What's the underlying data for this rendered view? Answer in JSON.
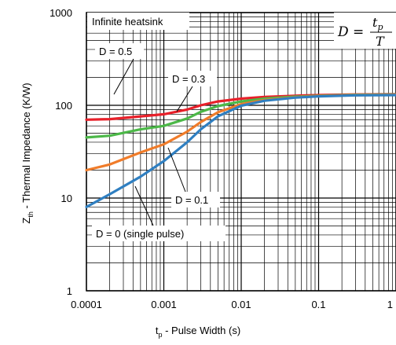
{
  "chart_data": {
    "type": "line",
    "xlabel": "t",
    "xlabel_sub": "p",
    "xlabel_rest": " - Pulse Width (s)",
    "ylabel": "Z",
    "ylabel_sub": "th",
    "ylabel_rest": " - Thermal Impedance (K/W)",
    "xscale": "log",
    "yscale": "log",
    "xlim": [
      0.0001,
      1
    ],
    "ylim": [
      1,
      1000
    ],
    "grid": true,
    "x_ticks": [
      "0.0001",
      "0.001",
      "0.01",
      "0.1",
      "1"
    ],
    "y_ticks": [
      "1",
      "10",
      "100",
      "1000"
    ],
    "annotations": {
      "infinite": "Infinite heatsink",
      "formula_lhs": "D =",
      "formula_num": "t",
      "formula_num_sub": "p",
      "formula_den": "T"
    },
    "series": [
      {
        "name": "D = 0.5",
        "color": "#e8202a",
        "points": [
          [
            0.0001,
            70
          ],
          [
            0.0002,
            71
          ],
          [
            0.0005,
            76
          ],
          [
            0.001,
            80
          ],
          [
            0.002,
            90
          ],
          [
            0.003,
            100
          ],
          [
            0.005,
            110
          ],
          [
            0.01,
            118
          ],
          [
            0.02,
            123
          ],
          [
            0.05,
            127
          ],
          [
            0.1,
            129
          ],
          [
            0.3,
            131
          ],
          [
            1,
            132
          ]
        ]
      },
      {
        "name": "D = 0.3",
        "color": "#4cb848",
        "points": [
          [
            0.0001,
            45
          ],
          [
            0.0002,
            47
          ],
          [
            0.0005,
            55
          ],
          [
            0.001,
            60
          ],
          [
            0.002,
            72
          ],
          [
            0.003,
            85
          ],
          [
            0.005,
            98
          ],
          [
            0.01,
            110
          ],
          [
            0.02,
            118
          ],
          [
            0.05,
            124
          ],
          [
            0.1,
            127
          ],
          [
            0.3,
            130
          ],
          [
            1,
            131
          ]
        ]
      },
      {
        "name": "D = 0.1",
        "color": "#f07c2a",
        "points": [
          [
            0.0001,
            20
          ],
          [
            0.0002,
            23
          ],
          [
            0.0005,
            31
          ],
          [
            0.001,
            38
          ],
          [
            0.002,
            52
          ],
          [
            0.003,
            66
          ],
          [
            0.005,
            84
          ],
          [
            0.01,
            103
          ],
          [
            0.02,
            114
          ],
          [
            0.05,
            122
          ],
          [
            0.1,
            126
          ],
          [
            0.3,
            129
          ],
          [
            1,
            130
          ]
        ]
      },
      {
        "name": "D = 0 (single pulse)",
        "color": "#2f7fc1",
        "points": [
          [
            0.0001,
            8
          ],
          [
            0.0002,
            11
          ],
          [
            0.0005,
            17
          ],
          [
            0.001,
            25
          ],
          [
            0.002,
            40
          ],
          [
            0.003,
            55
          ],
          [
            0.005,
            76
          ],
          [
            0.01,
            99
          ],
          [
            0.02,
            112
          ],
          [
            0.05,
            121
          ],
          [
            0.1,
            125
          ],
          [
            0.3,
            128
          ],
          [
            1,
            129
          ]
        ]
      }
    ]
  }
}
